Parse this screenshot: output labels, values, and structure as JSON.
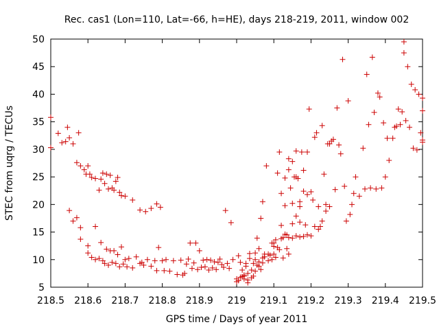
{
  "chart_data": {
    "type": "scatter",
    "title": "Rec. cas1 (Lon=110, Lat=-66, h=HE), days 218-219, 2011, window 002",
    "xlabel": "GPS time / Days of year 2011",
    "ylabel": "STEC from uqrg / TECUs",
    "xlim": [
      218.5,
      219.5
    ],
    "ylim": [
      5,
      50
    ],
    "xticks": [
      "218.5",
      "218.6",
      "218.7",
      "218.8",
      "218.9",
      "219",
      "219.1",
      "219.2",
      "219.3",
      "219.4",
      "219.5"
    ],
    "yticks": [
      "5",
      "10",
      "15",
      "20",
      "25",
      "30",
      "35",
      "40",
      "45",
      "50"
    ],
    "grid": false,
    "legend": "none",
    "marker": "plus",
    "color": "#cc0000",
    "points": [
      [
        218.5,
        35.8
      ],
      [
        218.5,
        30.3
      ],
      [
        218.52,
        32.9
      ],
      [
        218.53,
        31.2
      ],
      [
        218.54,
        31.4
      ],
      [
        218.545,
        34.0
      ],
      [
        218.55,
        32.1
      ],
      [
        218.56,
        31.0
      ],
      [
        218.57,
        27.6
      ],
      [
        218.575,
        33.0
      ],
      [
        218.58,
        27.0
      ],
      [
        218.59,
        26.3
      ],
      [
        218.595,
        25.5
      ],
      [
        218.6,
        27.0
      ],
      [
        218.605,
        25.5
      ],
      [
        218.61,
        24.9
      ],
      [
        218.62,
        24.7
      ],
      [
        218.63,
        22.6
      ],
      [
        218.635,
        24.6
      ],
      [
        218.64,
        25.7
      ],
      [
        218.645,
        23.8
      ],
      [
        218.65,
        25.5
      ],
      [
        218.655,
        22.8
      ],
      [
        218.66,
        25.3
      ],
      [
        218.665,
        23.0
      ],
      [
        218.67,
        22.6
      ],
      [
        218.675,
        24.2
      ],
      [
        218.68,
        24.9
      ],
      [
        218.685,
        22.2
      ],
      [
        218.69,
        21.6
      ],
      [
        218.7,
        21.5
      ],
      [
        218.72,
        20.8
      ],
      [
        218.74,
        19.0
      ],
      [
        218.755,
        18.7
      ],
      [
        218.77,
        19.3
      ],
      [
        218.785,
        20.1
      ],
      [
        218.795,
        19.5
      ],
      [
        218.55,
        18.9
      ],
      [
        218.56,
        17.0
      ],
      [
        218.57,
        17.6
      ],
      [
        218.58,
        15.8
      ],
      [
        218.58,
        13.7
      ],
      [
        218.6,
        12.5
      ],
      [
        218.62,
        16.0
      ],
      [
        218.635,
        13.1
      ],
      [
        218.6,
        11.2
      ],
      [
        218.61,
        10.4
      ],
      [
        218.62,
        10.0
      ],
      [
        218.63,
        10.2
      ],
      [
        218.64,
        9.8
      ],
      [
        218.645,
        9.3
      ],
      [
        218.65,
        11.9
      ],
      [
        218.655,
        9.0
      ],
      [
        218.66,
        11.6
      ],
      [
        218.665,
        9.5
      ],
      [
        218.67,
        11.6
      ],
      [
        218.675,
        9.3
      ],
      [
        218.68,
        10.9
      ],
      [
        218.685,
        8.7
      ],
      [
        218.69,
        12.3
      ],
      [
        218.695,
        9.2
      ],
      [
        218.7,
        10.0
      ],
      [
        218.705,
        8.7
      ],
      [
        218.71,
        10.2
      ],
      [
        218.72,
        8.5
      ],
      [
        218.73,
        10.5
      ],
      [
        218.74,
        9.3
      ],
      [
        218.745,
        9.5
      ],
      [
        218.75,
        9.0
      ],
      [
        218.76,
        10.0
      ],
      [
        218.77,
        8.8
      ],
      [
        218.78,
        9.8
      ],
      [
        218.785,
        8.0
      ],
      [
        218.79,
        12.2
      ],
      [
        218.8,
        9.8
      ],
      [
        218.805,
        8.0
      ],
      [
        218.81,
        10.0
      ],
      [
        218.82,
        7.9
      ],
      [
        218.83,
        9.8
      ],
      [
        218.84,
        7.3
      ],
      [
        218.85,
        9.9
      ],
      [
        218.855,
        7.2
      ],
      [
        218.86,
        7.5
      ],
      [
        218.865,
        9.2
      ],
      [
        218.87,
        10.1
      ],
      [
        218.875,
        13.0
      ],
      [
        218.88,
        8.4
      ],
      [
        218.885,
        9.4
      ],
      [
        218.89,
        13.0
      ],
      [
        218.895,
        8.2
      ],
      [
        218.9,
        11.6
      ],
      [
        218.905,
        8.6
      ],
      [
        218.91,
        9.9
      ],
      [
        218.915,
        8.7
      ],
      [
        218.92,
        10.0
      ],
      [
        218.925,
        8.1
      ],
      [
        218.93,
        9.9
      ],
      [
        218.935,
        8.5
      ],
      [
        218.94,
        9.6
      ],
      [
        218.945,
        8.2
      ],
      [
        218.95,
        9.5
      ],
      [
        218.955,
        10.1
      ],
      [
        218.96,
        9.1
      ],
      [
        218.965,
        8.6
      ],
      [
        218.97,
        18.9
      ],
      [
        218.975,
        9.3
      ],
      [
        218.98,
        8.4
      ],
      [
        218.985,
        16.7
      ],
      [
        218.99,
        10.0
      ],
      [
        219.0,
        6.5
      ],
      [
        219.005,
        6.2
      ],
      [
        219.01,
        9.5
      ],
      [
        219.015,
        6.9
      ],
      [
        219.02,
        6.5
      ],
      [
        219.025,
        9.3
      ],
      [
        219.03,
        7.5
      ],
      [
        219.035,
        11.1
      ],
      [
        219.04,
        8.1
      ],
      [
        219.045,
        7.0
      ],
      [
        219.05,
        10.0
      ],
      [
        219.055,
        13.9
      ],
      [
        219.06,
        8.8
      ],
      [
        219.065,
        17.5
      ],
      [
        219.07,
        20.5
      ],
      [
        219.075,
        10.5
      ],
      [
        219.08,
        27.0
      ],
      [
        219.085,
        11.0
      ],
      [
        219.09,
        10.8
      ],
      [
        219.095,
        13.0
      ],
      [
        219.1,
        12.4
      ],
      [
        219.105,
        13.6
      ],
      [
        219.11,
        25.7
      ],
      [
        219.115,
        29.5
      ],
      [
        219.12,
        22.0
      ],
      [
        219.125,
        14.0
      ],
      [
        219.13,
        19.8
      ],
      [
        219.135,
        14.5
      ],
      [
        219.14,
        28.3
      ],
      [
        219.145,
        23.0
      ],
      [
        219.15,
        20.2
      ],
      [
        219.155,
        25.0
      ],
      [
        219.16,
        29.7
      ],
      [
        219.165,
        24.7
      ],
      [
        219.17,
        19.6
      ],
      [
        219.175,
        29.5
      ],
      [
        219.18,
        26.2
      ],
      [
        219.185,
        16.3
      ],
      [
        219.19,
        29.5
      ],
      [
        219.195,
        37.3
      ],
      [
        219.2,
        22.3
      ],
      [
        219.205,
        20.8
      ],
      [
        219.21,
        32.2
      ],
      [
        219.215,
        33.0
      ],
      [
        219.22,
        19.6
      ],
      [
        219.225,
        16.0
      ],
      [
        219.23,
        34.3
      ],
      [
        219.235,
        25.5
      ],
      [
        219.24,
        20.0
      ],
      [
        219.245,
        31.0
      ],
      [
        219.25,
        31.0
      ],
      [
        219.255,
        31.5
      ],
      [
        219.26,
        31.8
      ],
      [
        219.265,
        22.7
      ],
      [
        219.27,
        37.5
      ],
      [
        219.275,
        30.8
      ],
      [
        219.28,
        29.2
      ],
      [
        219.285,
        46.3
      ],
      [
        219.29,
        23.3
      ],
      [
        219.295,
        17.0
      ],
      [
        219.3,
        38.8
      ],
      [
        219.305,
        18.2
      ],
      [
        219.31,
        20.0
      ],
      [
        219.315,
        22.0
      ],
      [
        219.32,
        25.0
      ],
      [
        219.33,
        21.5
      ],
      [
        219.34,
        30.2
      ],
      [
        219.345,
        22.8
      ],
      [
        219.35,
        43.6
      ],
      [
        219.355,
        34.5
      ],
      [
        219.36,
        23.0
      ],
      [
        219.365,
        46.7
      ],
      [
        219.37,
        36.7
      ],
      [
        219.375,
        22.8
      ],
      [
        219.38,
        40.2
      ],
      [
        219.385,
        39.5
      ],
      [
        219.39,
        23.0
      ],
      [
        219.395,
        34.8
      ],
      [
        219.4,
        25.0
      ],
      [
        219.405,
        32.0
      ],
      [
        219.41,
        28.0
      ],
      [
        219.42,
        32.0
      ],
      [
        219.425,
        34.0
      ],
      [
        219.43,
        34.2
      ],
      [
        219.435,
        37.3
      ],
      [
        219.44,
        34.5
      ],
      [
        219.445,
        36.8
      ],
      [
        219.45,
        49.5
      ],
      [
        219.45,
        47.5
      ],
      [
        219.455,
        35.2
      ],
      [
        219.46,
        45.0
      ],
      [
        219.465,
        34.0
      ],
      [
        219.47,
        41.8
      ],
      [
        219.475,
        30.2
      ],
      [
        219.48,
        40.8
      ],
      [
        219.485,
        29.9
      ],
      [
        219.49,
        40.0
      ],
      [
        219.495,
        33.0
      ],
      [
        219.5,
        39.3
      ],
      [
        219.5,
        37.0
      ],
      [
        219.5,
        31.7
      ],
      [
        219.5,
        31.3
      ],
      [
        219.1,
        13.0
      ],
      [
        219.11,
        12.2
      ],
      [
        219.12,
        13.8
      ],
      [
        219.13,
        14.6
      ],
      [
        219.14,
        14.0
      ],
      [
        219.15,
        13.9
      ],
      [
        219.16,
        14.3
      ],
      [
        219.17,
        14.1
      ],
      [
        219.18,
        14.2
      ],
      [
        219.19,
        14.5
      ],
      [
        219.2,
        14.3
      ],
      [
        219.21,
        16.0
      ],
      [
        219.22,
        15.5
      ],
      [
        219.23,
        17.0
      ],
      [
        219.24,
        18.8
      ],
      [
        219.25,
        19.6
      ],
      [
        219.1,
        11.0
      ],
      [
        219.115,
        11.8
      ],
      [
        219.125,
        10.3
      ],
      [
        219.135,
        12.0
      ],
      [
        219.14,
        11.0
      ],
      [
        219.15,
        16.5
      ],
      [
        219.16,
        17.9
      ],
      [
        219.17,
        16.8
      ],
      [
        219.12,
        16.2
      ],
      [
        219.13,
        24.8
      ],
      [
        219.14,
        26.3
      ],
      [
        219.15,
        27.8
      ],
      [
        219.16,
        25.0
      ],
      [
        219.17,
        20.5
      ],
      [
        219.18,
        22.4
      ],
      [
        219.19,
        21.8
      ],
      [
        219.0,
        6.0
      ],
      [
        219.01,
        6.8
      ],
      [
        219.02,
        7.2
      ],
      [
        219.03,
        6.3
      ],
      [
        219.04,
        6.7
      ],
      [
        219.05,
        7.9
      ],
      [
        219.06,
        9.6
      ],
      [
        219.07,
        10.3
      ],
      [
        219.005,
        10.7
      ],
      [
        219.015,
        8.1
      ],
      [
        219.025,
        8.8
      ],
      [
        219.035,
        10.2
      ],
      [
        219.045,
        9.3
      ],
      [
        219.055,
        9.0
      ],
      [
        219.065,
        8.2
      ],
      [
        219.075,
        11.0
      ],
      [
        219.085,
        9.8
      ],
      [
        219.095,
        10.0
      ],
      [
        219.105,
        10.4
      ],
      [
        219.02,
        7.0
      ],
      [
        219.03,
        5.8
      ],
      [
        219.05,
        11.2
      ],
      [
        219.06,
        12.0
      ],
      [
        219.07,
        9.4
      ]
    ]
  }
}
